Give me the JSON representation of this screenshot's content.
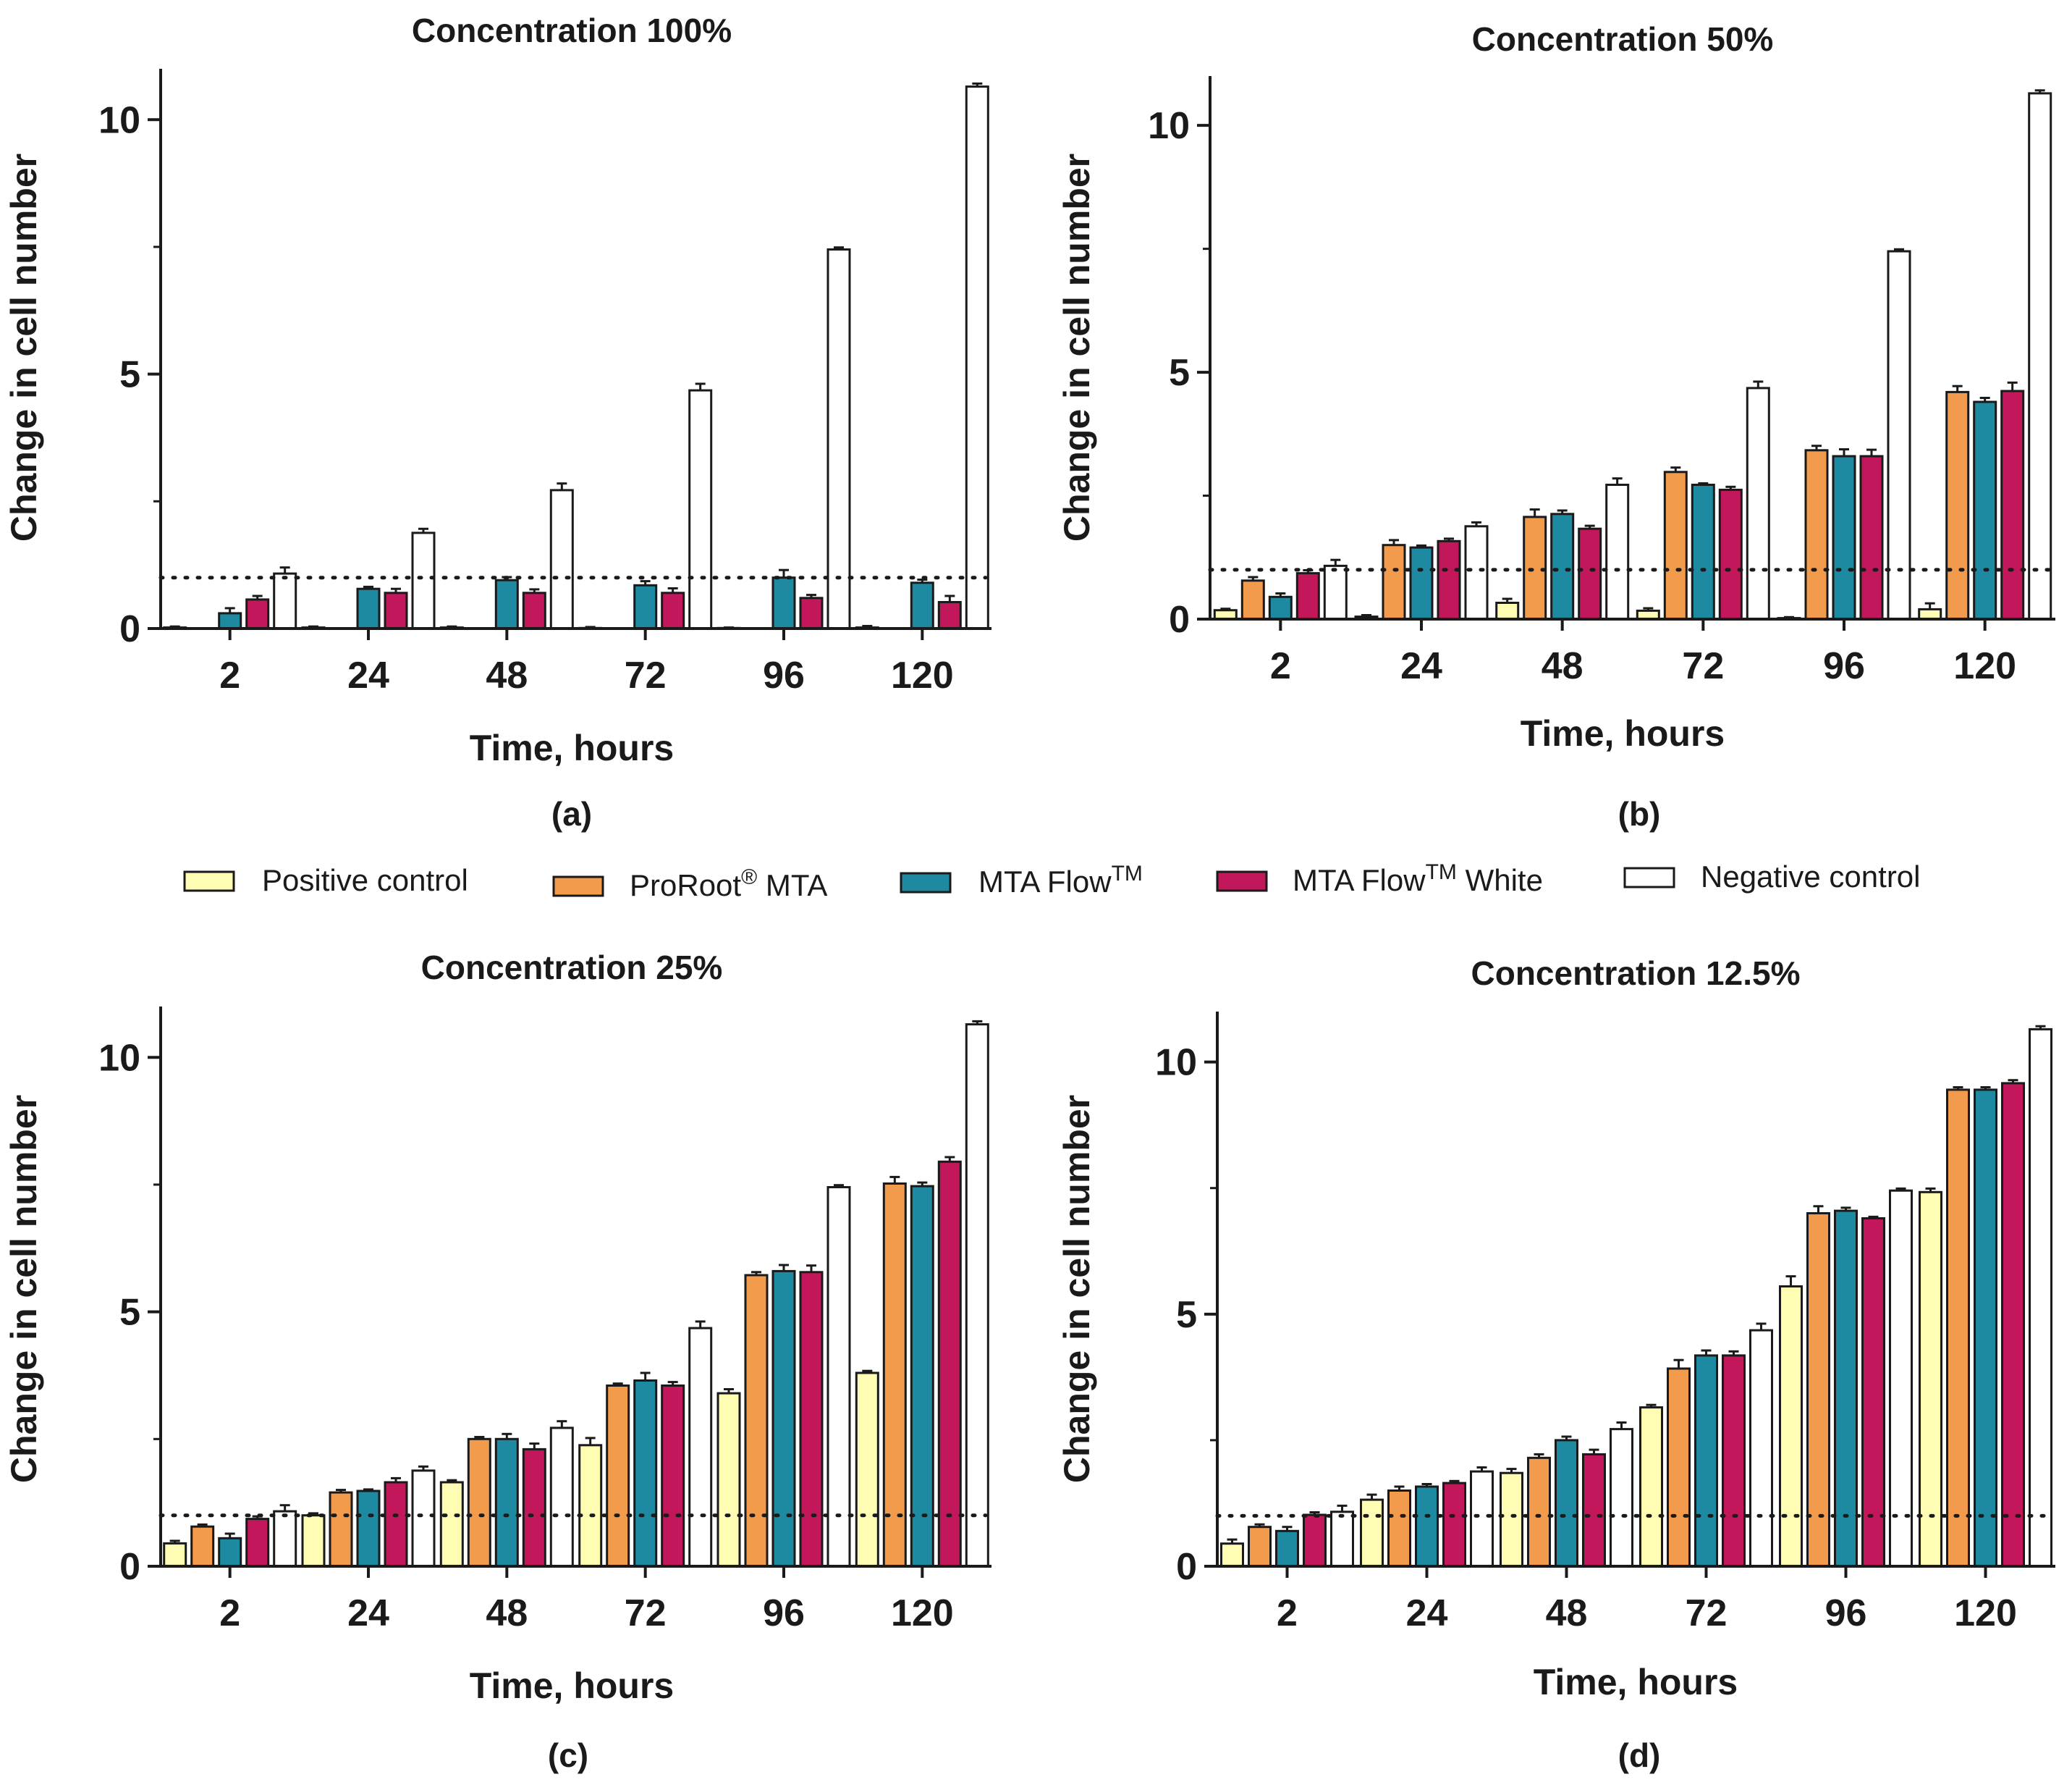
{
  "legend": [
    {
      "name": "Positive control",
      "color": "#FFFCB4"
    },
    {
      "name": "ProRoot",
      "sup": "®",
      "suffix": " MTA",
      "color": "#F39B4C"
    },
    {
      "name": "MTA Flow",
      "sup": "TM",
      "suffix": "",
      "color": "#1E8AA1"
    },
    {
      "name": "MTA Flow",
      "sup": "TM",
      "suffix": " White",
      "color": "#C2185B"
    },
    {
      "name": "Negative control",
      "color": "#FFFFFF"
    }
  ],
  "chart_data": [
    {
      "type": "bar",
      "panel": "(a)",
      "title": "Concentration 100%",
      "xlabel": "Time, hours",
      "ylabel": "Change in cell number",
      "categories": [
        "2",
        "24",
        "48",
        "72",
        "96",
        "120"
      ],
      "yticks": [
        "0",
        "5",
        "10"
      ],
      "ylim": [
        0,
        11
      ],
      "reference_line": 1,
      "series": [
        {
          "name": "Positive control",
          "values": [
            0.02,
            0.02,
            0.02,
            0.01,
            0.01,
            0.02
          ],
          "errors": [
            0.02,
            0.02,
            0.02,
            0.02,
            0.01,
            0.03
          ]
        },
        {
          "name": "ProRoot MTA",
          "values": [
            0,
            0,
            0,
            0,
            0,
            0
          ],
          "errors": [
            0,
            0,
            0,
            0,
            0,
            0
          ]
        },
        {
          "name": "MTA Flow",
          "values": [
            0.3,
            0.78,
            0.95,
            0.85,
            1.0,
            0.9
          ],
          "errors": [
            0.1,
            0.04,
            0.06,
            0.08,
            0.15,
            0.06
          ]
        },
        {
          "name": "MTA Flow White",
          "values": [
            0.57,
            0.7,
            0.7,
            0.7,
            0.6,
            0.52
          ],
          "errors": [
            0.07,
            0.08,
            0.07,
            0.09,
            0.06,
            0.12
          ]
        },
        {
          "name": "Negative control",
          "values": [
            1.08,
            1.88,
            2.72,
            4.68,
            7.45,
            10.65
          ],
          "errors": [
            0.12,
            0.08,
            0.13,
            0.13,
            0.04,
            0.06
          ]
        }
      ]
    },
    {
      "type": "bar",
      "panel": "(b)",
      "title": "Concentration 50%",
      "xlabel": "Time, hours",
      "ylabel": "Change in cell number",
      "categories": [
        "2",
        "24",
        "48",
        "72",
        "96",
        "120"
      ],
      "yticks": [
        "0",
        "5",
        "10"
      ],
      "ylim": [
        0,
        11
      ],
      "reference_line": 1,
      "series": [
        {
          "name": "Positive control",
          "values": [
            0.18,
            0.05,
            0.33,
            0.17,
            0.02,
            0.2
          ],
          "errors": [
            0.03,
            0.03,
            0.08,
            0.05,
            0.02,
            0.12
          ]
        },
        {
          "name": "ProRoot MTA",
          "values": [
            0.78,
            1.5,
            2.07,
            2.98,
            3.42,
            4.6
          ],
          "errors": [
            0.07,
            0.1,
            0.15,
            0.09,
            0.09,
            0.12
          ]
        },
        {
          "name": "MTA Flow",
          "values": [
            0.45,
            1.45,
            2.13,
            2.72,
            3.3,
            4.4
          ],
          "errors": [
            0.07,
            0.04,
            0.07,
            0.03,
            0.14,
            0.08
          ]
        },
        {
          "name": "MTA Flow White",
          "values": [
            0.93,
            1.58,
            1.83,
            2.62,
            3.3,
            4.62
          ],
          "errors": [
            0.06,
            0.05,
            0.06,
            0.06,
            0.13,
            0.17
          ]
        },
        {
          "name": "Negative control",
          "values": [
            1.08,
            1.88,
            2.72,
            4.68,
            7.45,
            10.65
          ],
          "errors": [
            0.12,
            0.08,
            0.13,
            0.13,
            0.04,
            0.06
          ]
        }
      ]
    },
    {
      "type": "bar",
      "panel": "(c)",
      "title": "Concentration 25%",
      "xlabel": "Time, hours",
      "ylabel": "Change in cell number",
      "categories": [
        "2",
        "24",
        "48",
        "72",
        "96",
        "120"
      ],
      "yticks": [
        "0",
        "5",
        "10"
      ],
      "ylim": [
        0,
        11
      ],
      "reference_line": 1,
      "series": [
        {
          "name": "Positive control",
          "values": [
            0.45,
            1.0,
            1.65,
            2.38,
            3.4,
            3.8
          ],
          "errors": [
            0.05,
            0.04,
            0.04,
            0.14,
            0.08,
            0.04
          ]
        },
        {
          "name": "ProRoot MTA",
          "values": [
            0.78,
            1.45,
            2.5,
            3.55,
            5.72,
            7.52
          ],
          "errors": [
            0.04,
            0.05,
            0.04,
            0.04,
            0.06,
            0.13
          ]
        },
        {
          "name": "MTA Flow",
          "values": [
            0.55,
            1.48,
            2.5,
            3.65,
            5.8,
            7.47
          ],
          "errors": [
            0.09,
            0.03,
            0.1,
            0.15,
            0.12,
            0.07
          ]
        },
        {
          "name": "MTA Flow White",
          "values": [
            0.93,
            1.65,
            2.3,
            3.55,
            5.78,
            7.95
          ],
          "errors": [
            0.05,
            0.08,
            0.11,
            0.07,
            0.13,
            0.09
          ]
        },
        {
          "name": "Negative control",
          "values": [
            1.08,
            1.88,
            2.72,
            4.68,
            7.45,
            10.65
          ],
          "errors": [
            0.12,
            0.08,
            0.13,
            0.13,
            0.04,
            0.06
          ]
        }
      ]
    },
    {
      "type": "bar",
      "panel": "(d)",
      "title": "Concentration 12.5%",
      "xlabel": "Time, hours",
      "ylabel": "Change in cell number",
      "categories": [
        "2",
        "24",
        "48",
        "72",
        "96",
        "120"
      ],
      "yticks": [
        "0",
        "5",
        "10"
      ],
      "ylim": [
        0,
        11
      ],
      "reference_line": 1,
      "series": [
        {
          "name": "Positive control",
          "values": [
            0.45,
            1.32,
            1.85,
            3.15,
            5.55,
            7.42
          ],
          "errors": [
            0.08,
            0.1,
            0.08,
            0.05,
            0.2,
            0.07
          ]
        },
        {
          "name": "ProRoot MTA",
          "values": [
            0.78,
            1.5,
            2.15,
            3.92,
            7.0,
            9.45
          ],
          "errors": [
            0.05,
            0.08,
            0.07,
            0.17,
            0.14,
            0.05
          ]
        },
        {
          "name": "MTA Flow",
          "values": [
            0.7,
            1.58,
            2.5,
            4.18,
            7.05,
            9.45
          ],
          "errors": [
            0.08,
            0.05,
            0.07,
            0.1,
            0.06,
            0.05
          ]
        },
        {
          "name": "MTA Flow White",
          "values": [
            1.02,
            1.65,
            2.22,
            4.18,
            6.9,
            9.58
          ],
          "errors": [
            0.05,
            0.04,
            0.09,
            0.08,
            0.03,
            0.06
          ]
        },
        {
          "name": "Negative control",
          "values": [
            1.08,
            1.88,
            2.72,
            4.68,
            7.45,
            10.65
          ],
          "errors": [
            0.12,
            0.08,
            0.13,
            0.13,
            0.04,
            0.06
          ]
        }
      ]
    }
  ]
}
